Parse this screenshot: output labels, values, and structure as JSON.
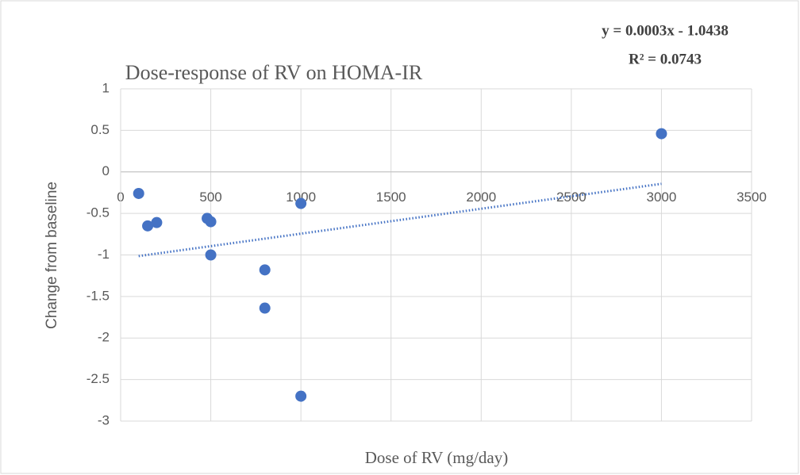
{
  "chart_data": {
    "type": "scatter",
    "title": "Dose-response of RV on HOMA-IR",
    "x_label": "Dose of RV (mg/day)",
    "y_label": "Change from baseline",
    "x": [
      100,
      150,
      200,
      480,
      500,
      500,
      800,
      800,
      1000,
      1000,
      3000
    ],
    "series": [
      {
        "name": "HOMA-IR",
        "color": "#4472c4",
        "values": [
          -0.26,
          -0.65,
          -0.61,
          -0.56,
          -0.6,
          -1.0,
          -1.18,
          -1.64,
          -0.38,
          -2.7,
          0.46
        ]
      }
    ],
    "trendline": {
      "equation": "y = 0.0003x - 1.0438",
      "r_squared": "R² = 0.0743",
      "slope": 0.0003,
      "intercept": -1.0438,
      "color": "#4472c4"
    },
    "xlim": [
      0,
      3500
    ],
    "xticks": [
      0,
      500,
      1000,
      1500,
      2000,
      2500,
      3000,
      3500
    ],
    "ylim": [
      -3,
      1
    ],
    "yticks": [
      1,
      0.5,
      0,
      -0.5,
      -1,
      -1.5,
      -2,
      -2.5,
      -3
    ],
    "grid": true
  }
}
